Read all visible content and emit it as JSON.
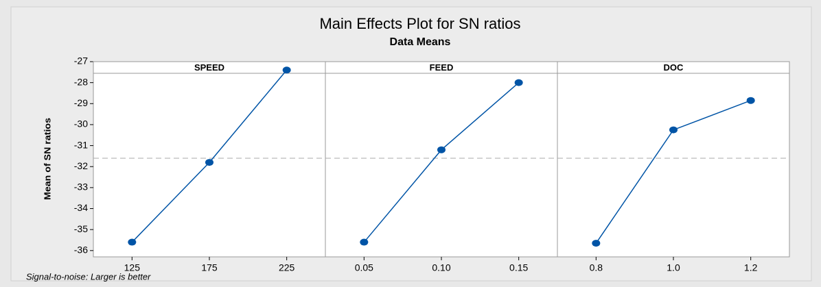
{
  "chart_data": {
    "type": "line",
    "title": "Main Effects Plot for SN ratios",
    "subtitle": "Data Means",
    "y_label": "Mean of SN ratios",
    "footnote": "Signal-to-noise: Larger is better",
    "ylim": [
      -36.3,
      -27.0
    ],
    "yticks": [
      -36,
      -35,
      -34,
      -33,
      -32,
      -31,
      -30,
      -29,
      -28,
      -27
    ],
    "reference_line": -31.6,
    "color": "#0054a6",
    "panels": [
      {
        "name": "SPEED",
        "categories": [
          "125",
          "175",
          "225"
        ],
        "values": [
          -35.6,
          -31.8,
          -27.4
        ]
      },
      {
        "name": "FEED",
        "categories": [
          "0.05",
          "0.10",
          "0.15"
        ],
        "values": [
          -35.6,
          -31.2,
          -28.0
        ]
      },
      {
        "name": "DOC",
        "categories": [
          "0.8",
          "1.0",
          "1.2"
        ],
        "values": [
          -35.65,
          -30.25,
          -28.85
        ]
      }
    ]
  }
}
